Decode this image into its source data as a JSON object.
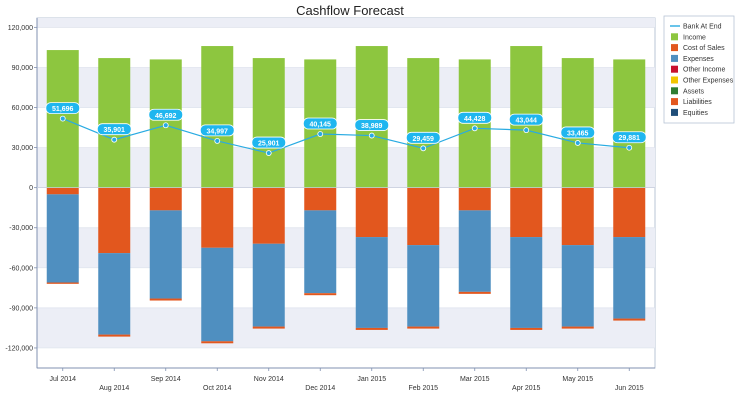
{
  "chart_data": {
    "type": "bar",
    "title": "Cashflow Forecast",
    "xlabel": "",
    "ylabel": "",
    "categories": [
      "Jul 2014",
      "Aug 2014",
      "Sep 2014",
      "Oct 2014",
      "Nov 2014",
      "Dec 2014",
      "Jan 2015",
      "Feb 2015",
      "Mar 2015",
      "Apr 2015",
      "May 2015",
      "Jun 2015"
    ],
    "ylim": [
      -135000,
      127000
    ],
    "yticks": [
      120000,
      90000,
      60000,
      30000,
      0,
      -30000,
      -60000,
      -90000,
      -120000
    ],
    "ytick_labels": [
      "120,000",
      "90,000",
      "60,000",
      "30,000",
      "0",
      "-30,000",
      "-60,000",
      "-90,000",
      "-120,000"
    ],
    "grid": true,
    "legend_position": "top-right",
    "series": [
      {
        "name": "Income",
        "kind": "bar",
        "color": "#8dc63f",
        "values": [
          103000,
          97000,
          96000,
          106000,
          97000,
          96000,
          106000,
          97000,
          96000,
          106000,
          97000,
          96000
        ]
      },
      {
        "name": "Cost of Sales",
        "kind": "bar",
        "color": "#e2571e",
        "values": [
          -5000,
          -49000,
          -17000,
          -45000,
          -42000,
          -17000,
          -37000,
          -43000,
          -17000,
          -37000,
          -43000,
          -37000
        ]
      },
      {
        "name": "Expenses",
        "kind": "bar",
        "color": "#4f8fc0",
        "values": [
          -66000,
          -61000,
          -66000,
          -70000,
          -62000,
          -62000,
          -68000,
          -61000,
          -61000,
          -68000,
          -61000,
          -61000
        ]
      },
      {
        "name": "Other Income",
        "kind": "bar",
        "color": "#c8102e",
        "values": [
          0,
          0,
          0,
          0,
          0,
          0,
          0,
          0,
          0,
          0,
          0,
          0
        ]
      },
      {
        "name": "Other Expenses",
        "kind": "bar",
        "color": "#f2c500",
        "values": [
          0,
          0,
          0,
          0,
          0,
          0,
          0,
          0,
          0,
          0,
          0,
          0
        ]
      },
      {
        "name": "Assets",
        "kind": "bar",
        "color": "#2e7d32",
        "values": [
          0,
          0,
          0,
          0,
          0,
          0,
          0,
          0,
          0,
          0,
          0,
          0
        ]
      },
      {
        "name": "Liabilities",
        "kind": "bar",
        "color": "#e2571e",
        "values": [
          -1000,
          -1500,
          -1500,
          -1500,
          -1500,
          -1500,
          -1500,
          -1500,
          -1500,
          -1500,
          -1500,
          -1500
        ]
      },
      {
        "name": "Equities",
        "kind": "bar",
        "color": "#1f4e79",
        "values": [
          0,
          0,
          0,
          0,
          0,
          0,
          0,
          0,
          0,
          0,
          0,
          0
        ]
      },
      {
        "name": "Bank At End",
        "kind": "line",
        "color": "#29abe2",
        "values": [
          51696,
          35901,
          46692,
          34997,
          25901,
          40145,
          38989,
          29459,
          44428,
          43044,
          33465,
          29881
        ]
      }
    ],
    "data_labels": [
      "51,696",
      "35,901",
      "46,692",
      "34,997",
      "25,901",
      "40,145",
      "38,989",
      "29,459",
      "44,428",
      "43,044",
      "33,465",
      "29,881"
    ],
    "legend": [
      "Bank At End",
      "Income",
      "Cost of Sales",
      "Expenses",
      "Other Income",
      "Other Expenses",
      "Assets",
      "Liabilities",
      "Equities"
    ]
  }
}
